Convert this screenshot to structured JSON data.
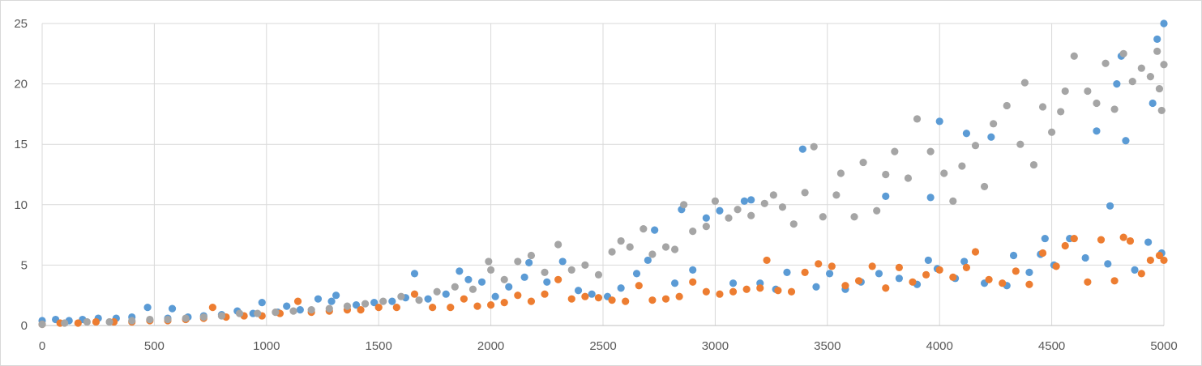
{
  "chart_data": {
    "type": "scatter",
    "title": "",
    "xlabel": "",
    "ylabel": "",
    "xlim": [
      0,
      5000
    ],
    "ylim": [
      0,
      25
    ],
    "x_ticks": [
      0,
      500,
      1000,
      1500,
      2000,
      2500,
      3000,
      3500,
      4000,
      4500,
      5000
    ],
    "y_ticks": [
      0,
      5,
      10,
      15,
      20,
      25
    ],
    "x_tick_labels": [
      "0",
      "500",
      "1000",
      "1500",
      "2000",
      "2500",
      "3000",
      "3500",
      "4000",
      "4500",
      "5000"
    ],
    "y_tick_labels": [
      "0",
      "5",
      "10",
      "15",
      "20",
      "25"
    ],
    "grid": true,
    "legend": "none",
    "series": [
      {
        "color": "#5b9bd5",
        "points": [
          [
            0,
            0.4
          ],
          [
            60,
            0.5
          ],
          [
            120,
            0.4
          ],
          [
            180,
            0.5
          ],
          [
            250,
            0.6
          ],
          [
            330,
            0.6
          ],
          [
            400,
            0.7
          ],
          [
            470,
            1.5
          ],
          [
            560,
            0.6
          ],
          [
            580,
            1.4
          ],
          [
            650,
            0.7
          ],
          [
            720,
            0.8
          ],
          [
            800,
            0.9
          ],
          [
            870,
            1.2
          ],
          [
            940,
            1.0
          ],
          [
            980,
            1.9
          ],
          [
            1050,
            1.1
          ],
          [
            1090,
            1.6
          ],
          [
            1150,
            1.3
          ],
          [
            1230,
            2.2
          ],
          [
            1290,
            2.0
          ],
          [
            1310,
            2.5
          ],
          [
            1400,
            1.7
          ],
          [
            1480,
            1.9
          ],
          [
            1560,
            2.0
          ],
          [
            1620,
            2.3
          ],
          [
            1660,
            4.3
          ],
          [
            1720,
            2.2
          ],
          [
            1800,
            2.6
          ],
          [
            1860,
            4.5
          ],
          [
            1900,
            3.8
          ],
          [
            1960,
            3.6
          ],
          [
            2020,
            2.4
          ],
          [
            2080,
            3.2
          ],
          [
            2150,
            4.0
          ],
          [
            2170,
            5.2
          ],
          [
            2250,
            3.6
          ],
          [
            2320,
            5.3
          ],
          [
            2390,
            2.9
          ],
          [
            2450,
            2.6
          ],
          [
            2520,
            2.4
          ],
          [
            2580,
            3.1
          ],
          [
            2650,
            4.3
          ],
          [
            2700,
            5.4
          ],
          [
            2730,
            7.9
          ],
          [
            2820,
            3.5
          ],
          [
            2850,
            9.6
          ],
          [
            2900,
            4.6
          ],
          [
            2960,
            8.9
          ],
          [
            3020,
            9.5
          ],
          [
            3080,
            3.5
          ],
          [
            3130,
            10.3
          ],
          [
            3160,
            10.4
          ],
          [
            3200,
            3.5
          ],
          [
            3270,
            3.0
          ],
          [
            3320,
            4.4
          ],
          [
            3390,
            14.6
          ],
          [
            3450,
            3.2
          ],
          [
            3510,
            4.3
          ],
          [
            3580,
            3.0
          ],
          [
            3650,
            3.6
          ],
          [
            3730,
            4.3
          ],
          [
            3760,
            10.7
          ],
          [
            3820,
            3.9
          ],
          [
            3900,
            3.4
          ],
          [
            3950,
            5.4
          ],
          [
            3960,
            10.6
          ],
          [
            3990,
            4.7
          ],
          [
            4000,
            16.9
          ],
          [
            4070,
            3.9
          ],
          [
            4110,
            5.3
          ],
          [
            4120,
            15.9
          ],
          [
            4200,
            3.5
          ],
          [
            4230,
            15.6
          ],
          [
            4300,
            3.3
          ],
          [
            4330,
            5.8
          ],
          [
            4400,
            4.4
          ],
          [
            4450,
            5.9
          ],
          [
            4470,
            7.2
          ],
          [
            4510,
            5.0
          ],
          [
            4580,
            7.2
          ],
          [
            4650,
            5.6
          ],
          [
            4700,
            16.1
          ],
          [
            4750,
            5.1
          ],
          [
            4760,
            9.9
          ],
          [
            4790,
            20.0
          ],
          [
            4810,
            22.3
          ],
          [
            4830,
            15.3
          ],
          [
            4870,
            4.6
          ],
          [
            4930,
            6.9
          ],
          [
            4950,
            18.4
          ],
          [
            4970,
            23.7
          ],
          [
            4990,
            6.0
          ],
          [
            5000,
            25.0
          ]
        ]
      },
      {
        "color": "#ed7d31",
        "points": [
          [
            0,
            0.1
          ],
          [
            80,
            0.2
          ],
          [
            160,
            0.2
          ],
          [
            240,
            0.3
          ],
          [
            320,
            0.3
          ],
          [
            400,
            0.3
          ],
          [
            480,
            0.4
          ],
          [
            560,
            0.4
          ],
          [
            640,
            0.5
          ],
          [
            720,
            0.6
          ],
          [
            760,
            1.5
          ],
          [
            820,
            0.7
          ],
          [
            900,
            0.8
          ],
          [
            980,
            0.8
          ],
          [
            1060,
            1.0
          ],
          [
            1140,
            2.0
          ],
          [
            1200,
            1.1
          ],
          [
            1280,
            1.2
          ],
          [
            1360,
            1.3
          ],
          [
            1420,
            1.3
          ],
          [
            1500,
            1.5
          ],
          [
            1580,
            1.5
          ],
          [
            1660,
            2.6
          ],
          [
            1740,
            1.5
          ],
          [
            1820,
            1.5
          ],
          [
            1880,
            2.2
          ],
          [
            1940,
            1.6
          ],
          [
            2000,
            1.7
          ],
          [
            2060,
            1.9
          ],
          [
            2120,
            2.5
          ],
          [
            2180,
            2.0
          ],
          [
            2240,
            2.6
          ],
          [
            2300,
            3.8
          ],
          [
            2360,
            2.2
          ],
          [
            2420,
            2.4
          ],
          [
            2480,
            2.3
          ],
          [
            2540,
            2.1
          ],
          [
            2600,
            2.0
          ],
          [
            2660,
            3.3
          ],
          [
            2720,
            2.1
          ],
          [
            2780,
            2.2
          ],
          [
            2840,
            2.4
          ],
          [
            2900,
            3.6
          ],
          [
            2960,
            2.8
          ],
          [
            3020,
            2.6
          ],
          [
            3080,
            2.8
          ],
          [
            3140,
            3.0
          ],
          [
            3200,
            3.1
          ],
          [
            3230,
            5.4
          ],
          [
            3280,
            2.9
          ],
          [
            3340,
            2.8
          ],
          [
            3400,
            4.4
          ],
          [
            3460,
            5.1
          ],
          [
            3520,
            4.9
          ],
          [
            3580,
            3.3
          ],
          [
            3640,
            3.7
          ],
          [
            3700,
            4.9
          ],
          [
            3760,
            3.1
          ],
          [
            3820,
            4.8
          ],
          [
            3880,
            3.6
          ],
          [
            3940,
            4.2
          ],
          [
            4000,
            4.6
          ],
          [
            4060,
            4.0
          ],
          [
            4120,
            4.8
          ],
          [
            4160,
            6.1
          ],
          [
            4220,
            3.8
          ],
          [
            4280,
            3.5
          ],
          [
            4340,
            4.5
          ],
          [
            4400,
            3.4
          ],
          [
            4460,
            6.0
          ],
          [
            4520,
            4.9
          ],
          [
            4560,
            6.6
          ],
          [
            4600,
            7.2
          ],
          [
            4660,
            3.6
          ],
          [
            4720,
            7.1
          ],
          [
            4780,
            3.7
          ],
          [
            4820,
            7.3
          ],
          [
            4850,
            7.0
          ],
          [
            4900,
            4.3
          ],
          [
            4940,
            5.4
          ],
          [
            4980,
            5.8
          ],
          [
            5000,
            5.4
          ]
        ]
      },
      {
        "color": "#a5a5a5",
        "points": [
          [
            0,
            0.1
          ],
          [
            100,
            0.2
          ],
          [
            200,
            0.3
          ],
          [
            300,
            0.3
          ],
          [
            400,
            0.4
          ],
          [
            480,
            0.5
          ],
          [
            560,
            0.5
          ],
          [
            640,
            0.6
          ],
          [
            720,
            0.7
          ],
          [
            800,
            0.8
          ],
          [
            880,
            1.0
          ],
          [
            960,
            1.0
          ],
          [
            1040,
            1.1
          ],
          [
            1120,
            1.2
          ],
          [
            1200,
            1.3
          ],
          [
            1280,
            1.4
          ],
          [
            1360,
            1.6
          ],
          [
            1440,
            1.8
          ],
          [
            1520,
            2.0
          ],
          [
            1600,
            2.4
          ],
          [
            1680,
            2.1
          ],
          [
            1760,
            2.8
          ],
          [
            1840,
            3.2
          ],
          [
            1920,
            3.0
          ],
          [
            1990,
            5.3
          ],
          [
            2000,
            4.6
          ],
          [
            2060,
            3.8
          ],
          [
            2120,
            5.3
          ],
          [
            2180,
            5.8
          ],
          [
            2240,
            4.4
          ],
          [
            2300,
            6.7
          ],
          [
            2360,
            4.6
          ],
          [
            2420,
            5.0
          ],
          [
            2480,
            4.2
          ],
          [
            2540,
            6.1
          ],
          [
            2580,
            7.0
          ],
          [
            2620,
            6.5
          ],
          [
            2680,
            8.0
          ],
          [
            2720,
            5.9
          ],
          [
            2780,
            6.5
          ],
          [
            2820,
            6.3
          ],
          [
            2860,
            10.0
          ],
          [
            2900,
            7.8
          ],
          [
            2960,
            8.2
          ],
          [
            3000,
            10.3
          ],
          [
            3060,
            8.9
          ],
          [
            3100,
            9.6
          ],
          [
            3160,
            9.1
          ],
          [
            3220,
            10.1
          ],
          [
            3260,
            10.8
          ],
          [
            3300,
            9.8
          ],
          [
            3350,
            8.4
          ],
          [
            3400,
            11.0
          ],
          [
            3440,
            14.8
          ],
          [
            3480,
            9.0
          ],
          [
            3540,
            10.8
          ],
          [
            3560,
            12.6
          ],
          [
            3620,
            9.0
          ],
          [
            3660,
            13.5
          ],
          [
            3720,
            9.5
          ],
          [
            3760,
            12.5
          ],
          [
            3800,
            14.4
          ],
          [
            3860,
            12.2
          ],
          [
            3900,
            17.1
          ],
          [
            3960,
            14.4
          ],
          [
            4020,
            12.6
          ],
          [
            4060,
            10.3
          ],
          [
            4100,
            13.2
          ],
          [
            4160,
            14.9
          ],
          [
            4200,
            11.5
          ],
          [
            4240,
            16.7
          ],
          [
            4300,
            18.2
          ],
          [
            4360,
            15.0
          ],
          [
            4380,
            20.1
          ],
          [
            4420,
            13.3
          ],
          [
            4460,
            18.1
          ],
          [
            4500,
            16.0
          ],
          [
            4540,
            17.7
          ],
          [
            4560,
            19.4
          ],
          [
            4600,
            22.3
          ],
          [
            4660,
            19.4
          ],
          [
            4700,
            18.4
          ],
          [
            4740,
            21.7
          ],
          [
            4780,
            17.9
          ],
          [
            4820,
            22.5
          ],
          [
            4860,
            20.2
          ],
          [
            4900,
            21.3
          ],
          [
            4940,
            20.6
          ],
          [
            4970,
            22.7
          ],
          [
            4980,
            19.6
          ],
          [
            4990,
            17.8
          ],
          [
            5000,
            21.6
          ]
        ]
      }
    ]
  }
}
